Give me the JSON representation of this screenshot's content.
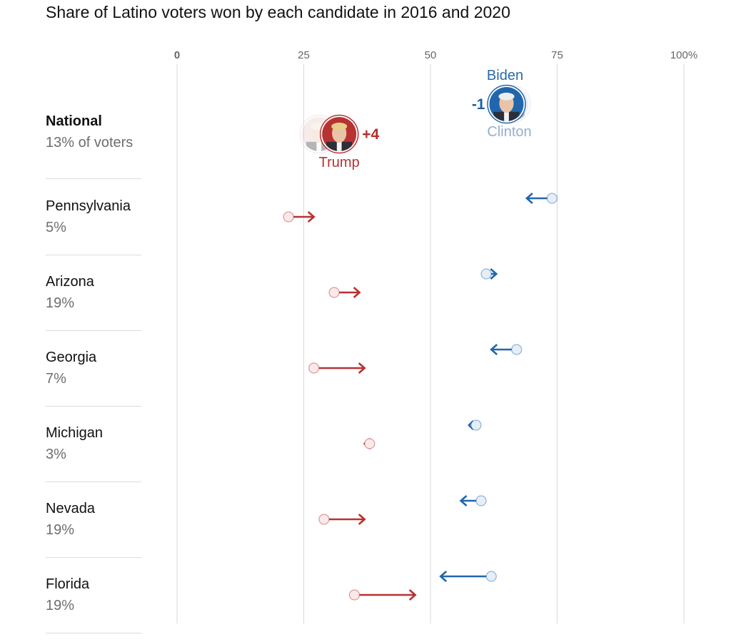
{
  "title": "Share of Latino voters won by each candidate in 2016 and 2020",
  "colors": {
    "dem": "#2166ac",
    "dem_light": "#e6eef8",
    "dem_2016_text": "#93aed0",
    "rep": "#b83232",
    "rep_light": "#fbe9e9",
    "grid": "#d9d9d9"
  },
  "national": {
    "name": "National",
    "share": "13% of voters",
    "biden_label": "Biden",
    "clinton_label": "Clinton",
    "trump_label": "Trump",
    "dem_change": "-1",
    "rep_change": "+4",
    "icons": [
      "biden-portrait-icon",
      "trump-portrait-icon",
      "clinton-portrait-icon"
    ]
  },
  "chart_data": {
    "type": "arrow-dot",
    "title": "Share of Latino voters won by each candidate in 2016 and 2020",
    "x_ticks": [
      "0",
      "25",
      "50",
      "75",
      "100%"
    ],
    "xlim": [
      0,
      100
    ],
    "grid": true,
    "series": [
      {
        "name": "Biden",
        "from_name": "Clinton"
      },
      {
        "name": "Trump"
      }
    ],
    "national": {
      "dem_2016": 66,
      "dem_2020": 65,
      "rep_2016": 28,
      "rep_2020": 32
    },
    "rows": [
      {
        "name": "Pennsylvania",
        "share": "5%",
        "dem_2016": 74,
        "dem_2020": 69,
        "rep_2016": 22,
        "rep_2020": 27
      },
      {
        "name": "Arizona",
        "share": "19%",
        "dem_2016": 61,
        "dem_2020": 63,
        "rep_2016": 31,
        "rep_2020": 36
      },
      {
        "name": "Georgia",
        "share": "7%",
        "dem_2016": 67,
        "dem_2020": 62,
        "rep_2016": 27,
        "rep_2020": 37
      },
      {
        "name": "Michigan",
        "share": "3%",
        "dem_2016": 59,
        "dem_2020": 59,
        "rep_2016": 38,
        "rep_2020": 37
      },
      {
        "name": "Nevada",
        "share": "19%",
        "dem_2016": 60,
        "dem_2020": 56,
        "rep_2016": 29,
        "rep_2020": 37
      },
      {
        "name": "Florida",
        "share": "19%",
        "dem_2016": 62,
        "dem_2020": 52,
        "rep_2016": 35,
        "rep_2020": 47
      }
    ]
  }
}
